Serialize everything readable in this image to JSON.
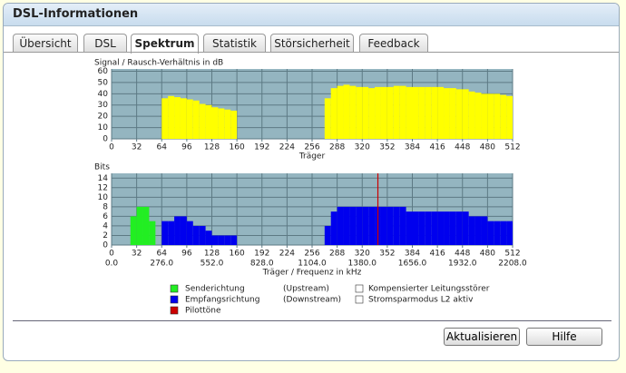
{
  "header": {
    "title": "DSL-Informationen"
  },
  "tabs": [
    "Übersicht",
    "DSL",
    "Spektrum",
    "Statistik",
    "Störsicherheit",
    "Feedback"
  ],
  "active_tab": 2,
  "chart_data": [
    {
      "type": "bar",
      "title": "Signal / Rausch-Verhältnis in dB",
      "x_label": "Träger",
      "xlim": [
        0,
        512
      ],
      "xticks": [
        0,
        32,
        64,
        96,
        128,
        160,
        192,
        224,
        256,
        288,
        320,
        352,
        384,
        416,
        448,
        480,
        512
      ],
      "ylim": [
        0,
        62
      ],
      "yticks": [
        0,
        10,
        20,
        30,
        40,
        50,
        60
      ],
      "grid": true,
      "x": [
        0,
        8,
        16,
        24,
        32,
        40,
        48,
        56,
        64,
        72,
        80,
        88,
        96,
        104,
        112,
        120,
        128,
        136,
        144,
        152,
        160,
        168,
        176,
        184,
        192,
        200,
        208,
        216,
        224,
        232,
        240,
        248,
        256,
        264,
        272,
        280,
        288,
        296,
        304,
        312,
        320,
        328,
        336,
        344,
        352,
        360,
        368,
        376,
        384,
        392,
        400,
        408,
        416,
        424,
        432,
        440,
        448,
        456,
        464,
        472,
        480,
        488,
        496,
        504
      ],
      "series": [
        {
          "name": "SNR",
          "color": "#ffff00",
          "values": [
            null,
            null,
            null,
            null,
            null,
            null,
            null,
            null,
            36,
            38,
            37,
            36,
            35,
            34,
            31,
            30,
            28,
            27,
            26,
            25,
            null,
            null,
            null,
            null,
            null,
            null,
            null,
            null,
            null,
            null,
            null,
            null,
            null,
            null,
            36,
            45,
            47,
            48,
            47,
            46,
            46,
            45,
            46,
            46,
            46,
            47,
            47,
            46,
            46,
            46,
            46,
            46,
            46,
            45,
            45,
            44,
            44,
            42,
            41,
            40,
            40,
            40,
            39,
            38
          ]
        }
      ]
    },
    {
      "type": "bar",
      "title": "Bits",
      "x_label": "Träger / Frequenz in kHz",
      "xlim": [
        0,
        512
      ],
      "xticks": [
        0,
        32,
        64,
        96,
        128,
        160,
        192,
        224,
        256,
        288,
        320,
        352,
        384,
        416,
        448,
        480,
        512
      ],
      "x2ticks": [
        {
          "value": 0,
          "label": "0.0"
        },
        {
          "value": 64,
          "label": "276.0"
        },
        {
          "value": 128,
          "label": "552.0"
        },
        {
          "value": 192,
          "label": "828.0"
        },
        {
          "value": 256,
          "label": "1104.0"
        },
        {
          "value": 320,
          "label": "1380.0"
        },
        {
          "value": 384,
          "label": "1656.0"
        },
        {
          "value": 448,
          "label": "1932.0"
        },
        {
          "value": 512,
          "label": "2208.0"
        }
      ],
      "ylim": [
        0,
        15
      ],
      "yticks": [
        0,
        2,
        4,
        6,
        8,
        10,
        12,
        14
      ],
      "grid": true,
      "x": [
        0,
        8,
        16,
        24,
        32,
        40,
        48,
        56,
        64,
        72,
        80,
        88,
        96,
        104,
        112,
        120,
        128,
        136,
        144,
        152,
        160,
        168,
        176,
        184,
        192,
        200,
        208,
        216,
        224,
        232,
        240,
        248,
        256,
        264,
        272,
        280,
        288,
        296,
        304,
        312,
        320,
        328,
        336,
        344,
        352,
        360,
        368,
        376,
        384,
        392,
        400,
        408,
        416,
        424,
        432,
        440,
        448,
        456,
        464,
        472,
        480,
        488,
        496,
        504
      ],
      "series": [
        {
          "name": "Senderichtung",
          "color": "#22ee22",
          "values": [
            null,
            null,
            null,
            6,
            8,
            8,
            5,
            null,
            null,
            null,
            null,
            null,
            null,
            null,
            null,
            null,
            null,
            null,
            null,
            null,
            null,
            null,
            null,
            null,
            null,
            null,
            null,
            null,
            null,
            null,
            null,
            null,
            null,
            null,
            null,
            null,
            null,
            null,
            null,
            null,
            null,
            null,
            null,
            null,
            null,
            null,
            null,
            null,
            null,
            null,
            null,
            null,
            null,
            null,
            null,
            null,
            null,
            null,
            null,
            null,
            null,
            null,
            null,
            null
          ]
        },
        {
          "name": "Empfangsrichtung",
          "color": "#0000ee",
          "values": [
            null,
            null,
            null,
            null,
            null,
            null,
            null,
            null,
            5,
            5,
            6,
            6,
            5,
            4,
            4,
            3,
            2,
            2,
            2,
            2,
            null,
            null,
            null,
            null,
            null,
            null,
            null,
            null,
            null,
            null,
            null,
            null,
            null,
            null,
            4,
            7,
            8,
            8,
            8,
            8,
            8,
            8,
            8,
            8,
            8,
            8,
            8,
            7,
            7,
            7,
            7,
            7,
            7,
            7,
            7,
            7,
            7,
            6,
            6,
            6,
            5,
            5,
            5,
            5
          ]
        },
        {
          "name": "Pilottöne",
          "color": "#cc0000",
          "mark": "line",
          "x": [
            340
          ],
          "values": [
            15
          ]
        }
      ]
    }
  ],
  "legend": {
    "notes": [
      "(Upstream)",
      "(Downstream)"
    ],
    "indicators": [
      "Kompensierter Leitungsstörer",
      "Stromsparmodus L2 aktiv"
    ]
  },
  "buttons": [
    "Aktualisieren",
    "Hilfe"
  ]
}
